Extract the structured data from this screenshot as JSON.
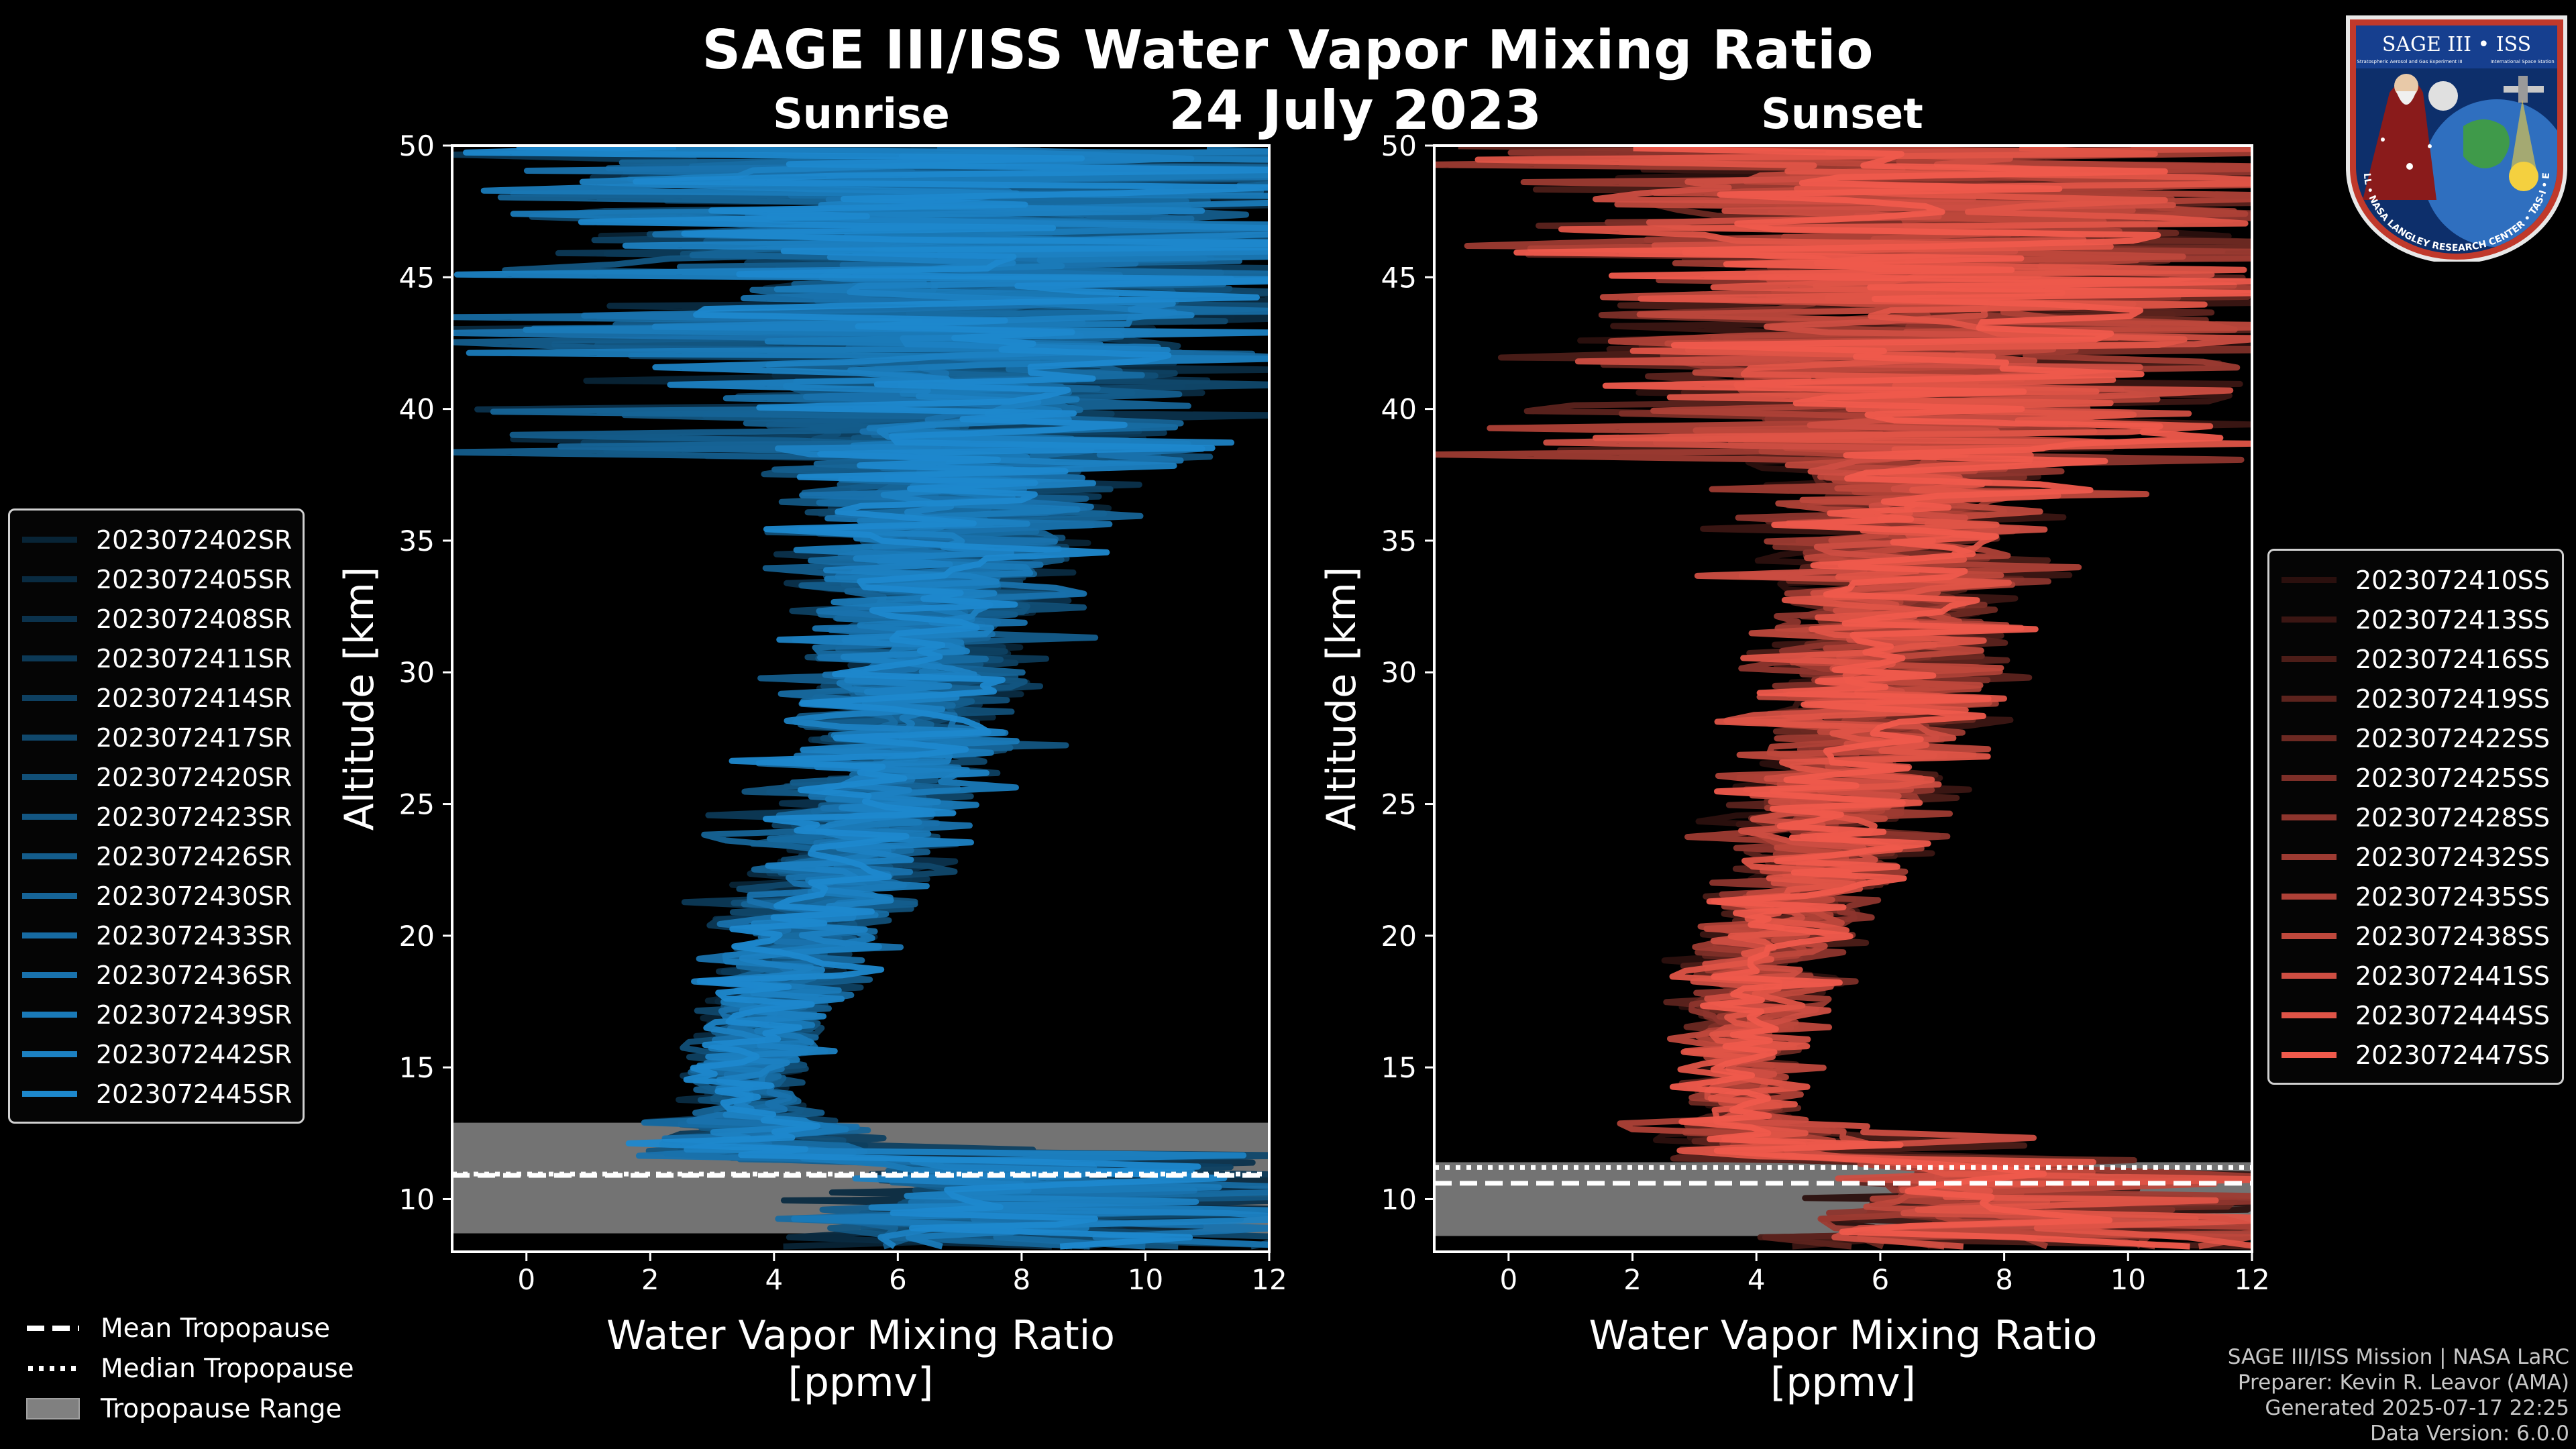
{
  "title": "SAGE III/ISS Water Vapor Mixing Ratio",
  "date": "24 July 2023",
  "footer": {
    "line1": "SAGE III/ISS Mission | NASA LaRC",
    "line2": "Preparer: Kevin R. Leavor (AMA)",
    "line3": "Generated 2025-07-17 22:25",
    "line4": "Data Version: 6.0.0"
  },
  "logo": {
    "top_text": "SAGE III • ISS",
    "sub_left": "Stratospheric Aerosol and Gas Experiment III",
    "sub_right": "International Space Station",
    "ring_text": "BALL • NASA LANGLEY RESEARCH CENTER • TAS-I • ESA"
  },
  "bottom_legend": {
    "mean": "Mean Tropopause",
    "median": "Median Tropopause",
    "range": "Tropopause Range"
  },
  "colors": {
    "sunrise": "#1f8fd8",
    "sunset": "#ef5a4c",
    "range": "#808080",
    "axes": "#ffffff"
  },
  "chart_data": [
    {
      "type": "line",
      "title": "Sunrise",
      "xlabel": "Water Vapor Mixing Ratio",
      "xlabel2": "[ppmv]",
      "ylabel": "Altitude [km]",
      "xlim": [
        -1.2,
        12
      ],
      "ylim": [
        8,
        50
      ],
      "xticks": [
        0,
        2,
        4,
        6,
        8,
        10,
        12
      ],
      "yticks": [
        10,
        15,
        20,
        25,
        30,
        35,
        40,
        45,
        50
      ],
      "series": [
        {
          "name": "2023072402SR"
        },
        {
          "name": "2023072405SR"
        },
        {
          "name": "2023072408SR"
        },
        {
          "name": "2023072411SR"
        },
        {
          "name": "2023072414SR"
        },
        {
          "name": "2023072417SR"
        },
        {
          "name": "2023072420SR"
        },
        {
          "name": "2023072423SR"
        },
        {
          "name": "2023072426SR"
        },
        {
          "name": "2023072430SR"
        },
        {
          "name": "2023072433SR"
        },
        {
          "name": "2023072436SR"
        },
        {
          "name": "2023072439SR"
        },
        {
          "name": "2023072442SR"
        },
        {
          "name": "2023072445SR"
        }
      ],
      "profile_center": [
        [
          11.5,
          3.9
        ],
        [
          14,
          3.6
        ],
        [
          16,
          3.8
        ],
        [
          18,
          4.1
        ],
        [
          20,
          4.5
        ],
        [
          22,
          5.0
        ],
        [
          25,
          5.6
        ],
        [
          28,
          6.0
        ],
        [
          30,
          6.2
        ],
        [
          33,
          6.5
        ],
        [
          35,
          6.8
        ],
        [
          38,
          7.0
        ],
        [
          40,
          7.2
        ],
        [
          45,
          7.3
        ],
        [
          50,
          7.3
        ]
      ],
      "tropopause": {
        "mean": 10.9,
        "median": 10.95,
        "range": [
          8.7,
          12.9
        ]
      }
    },
    {
      "type": "line",
      "title": "Sunset",
      "xlabel": "Water Vapor Mixing Ratio",
      "xlabel2": "[ppmv]",
      "ylabel": "Altitude [km]",
      "xlim": [
        -1.2,
        12
      ],
      "ylim": [
        8,
        50
      ],
      "xticks": [
        0,
        2,
        4,
        6,
        8,
        10,
        12
      ],
      "yticks": [
        10,
        15,
        20,
        25,
        30,
        35,
        40,
        45,
        50
      ],
      "series": [
        {
          "name": "2023072410SS"
        },
        {
          "name": "2023072413SS"
        },
        {
          "name": "2023072416SS"
        },
        {
          "name": "2023072419SS"
        },
        {
          "name": "2023072422SS"
        },
        {
          "name": "2023072425SS"
        },
        {
          "name": "2023072428SS"
        },
        {
          "name": "2023072432SS"
        },
        {
          "name": "2023072435SS"
        },
        {
          "name": "2023072438SS"
        },
        {
          "name": "2023072441SS"
        },
        {
          "name": "2023072444SS"
        },
        {
          "name": "2023072447SS"
        }
      ],
      "profile_center": [
        [
          11.5,
          4.2
        ],
        [
          14,
          3.8
        ],
        [
          16,
          3.7
        ],
        [
          18,
          3.9
        ],
        [
          20,
          4.3
        ],
        [
          22,
          4.9
        ],
        [
          25,
          5.4
        ],
        [
          28,
          5.8
        ],
        [
          30,
          6.0
        ],
        [
          33,
          6.3
        ],
        [
          35,
          6.5
        ],
        [
          38,
          6.7
        ],
        [
          40,
          6.9
        ],
        [
          45,
          7.0
        ],
        [
          50,
          7.0
        ]
      ],
      "tropopause": {
        "mean": 10.6,
        "median": 11.2,
        "range": [
          8.6,
          11.4
        ]
      }
    }
  ]
}
